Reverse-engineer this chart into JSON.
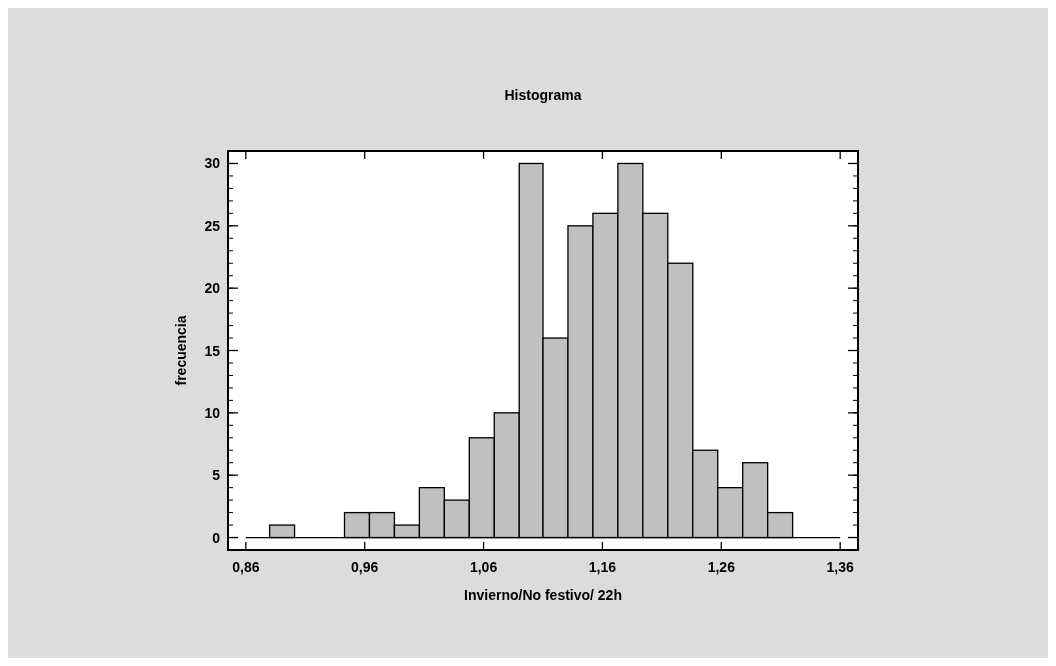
{
  "chart_data": {
    "type": "histogram",
    "title": "Histograma",
    "xlabel": "Invierno/No festivo/ 22h",
    "ylabel": "frecuencia",
    "bins": [
      0.88,
      0.901,
      0.943,
      0.964,
      0.985,
      1.006,
      1.027,
      1.048,
      1.069,
      1.09,
      1.11,
      1.131,
      1.152,
      1.173,
      1.194,
      1.215,
      1.236,
      1.257,
      1.278,
      1.299,
      1.32
    ],
    "values": [
      1,
      0,
      2,
      2,
      1,
      4,
      3,
      8,
      10,
      30,
      16,
      25,
      26,
      30,
      26,
      22,
      7,
      4,
      6,
      2
    ],
    "color": "#c0c0c0",
    "xlim": [
      0.845,
      1.375
    ],
    "xticks": [
      {
        "value": 0.86,
        "label": "0,86"
      },
      {
        "value": 0.96,
        "label": "0,96"
      },
      {
        "value": 1.06,
        "label": "1,06"
      },
      {
        "value": 1.16,
        "label": "1,16"
      },
      {
        "value": 1.26,
        "label": "1,26"
      },
      {
        "value": 1.36,
        "label": "1,36"
      }
    ],
    "ylim": [
      -1,
      31
    ],
    "yticks": [
      0,
      5,
      10,
      15,
      20,
      25,
      30
    ]
  }
}
